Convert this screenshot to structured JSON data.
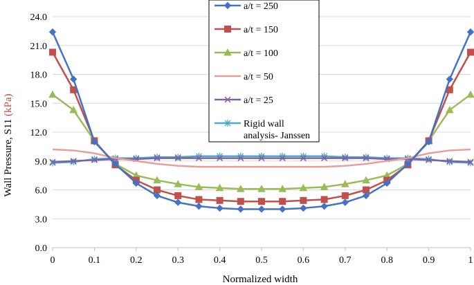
{
  "chart_data": {
    "type": "line",
    "title": "",
    "xlabel": "Normalized width",
    "ylabel_main": "Wall Pressure, S11 ",
    "ylabel_unit": "(kPa)",
    "xlim": [
      0,
      1
    ],
    "ylim": [
      0,
      24
    ],
    "x_ticks": [
      "0",
      "0.1",
      "0.2",
      "0.3",
      "0.4",
      "0.5",
      "0.6",
      "0.7",
      "0.8",
      "0.9",
      "1"
    ],
    "y_ticks": [
      "0.0",
      "3.0",
      "6.0",
      "9.0",
      "12.0",
      "15.0",
      "18.0",
      "21.0",
      "24.0"
    ],
    "grid": "horizontal",
    "legend_position": "top-center",
    "x": [
      0,
      0.05,
      0.1,
      0.15,
      0.2,
      0.25,
      0.3,
      0.35,
      0.4,
      0.45,
      0.5,
      0.55,
      0.6,
      0.65,
      0.7,
      0.75,
      0.8,
      0.85,
      0.9,
      0.95,
      1
    ],
    "series": [
      {
        "name": "a/t = 250",
        "color": "#4472C4",
        "marker": "diamond",
        "values": [
          22.4,
          17.5,
          11.0,
          8.7,
          6.7,
          5.4,
          4.7,
          4.3,
          4.1,
          4.0,
          4.0,
          4.0,
          4.1,
          4.3,
          4.7,
          5.4,
          6.7,
          8.7,
          11.0,
          17.5,
          22.4
        ]
      },
      {
        "name": "a/t = 150",
        "color": "#C0504D",
        "marker": "square",
        "values": [
          20.3,
          16.4,
          11.1,
          8.6,
          7.0,
          6.0,
          5.4,
          5.0,
          4.9,
          4.8,
          4.8,
          4.8,
          4.9,
          5.0,
          5.4,
          6.0,
          7.0,
          8.6,
          11.1,
          16.4,
          20.3
        ]
      },
      {
        "name": "a/t = 100",
        "color": "#9BBB59",
        "marker": "triangle",
        "values": [
          15.9,
          14.3,
          11.1,
          8.7,
          7.5,
          7.0,
          6.6,
          6.3,
          6.2,
          6.1,
          6.1,
          6.1,
          6.2,
          6.3,
          6.6,
          7.0,
          7.5,
          8.7,
          11.1,
          14.3,
          15.9
        ]
      },
      {
        "name": "a/t = 50",
        "color": "#E6A09C",
        "marker": "none",
        "values": [
          10.2,
          10.1,
          9.8,
          9.3,
          9.0,
          8.7,
          8.5,
          8.4,
          8.4,
          8.4,
          8.4,
          8.4,
          8.4,
          8.4,
          8.5,
          8.7,
          9.0,
          9.3,
          9.8,
          10.1,
          10.2
        ]
      },
      {
        "name": "a/t = 25",
        "color": "#7F60A8",
        "marker": "x",
        "values": [
          8.9,
          9.0,
          9.1,
          9.2,
          9.2,
          9.3,
          9.3,
          9.3,
          9.3,
          9.3,
          9.3,
          9.3,
          9.3,
          9.3,
          9.3,
          9.3,
          9.2,
          9.2,
          9.1,
          9.0,
          8.9
        ]
      },
      {
        "name": "Rigid wall analysis- Janssen",
        "name_lines": [
          "Rigid wall",
          "analysis- Janssen"
        ],
        "color": "#4BACC6",
        "marker": "star",
        "values": [
          8.8,
          8.9,
          9.2,
          9.3,
          9.3,
          9.4,
          9.4,
          9.5,
          9.5,
          9.5,
          9.5,
          9.5,
          9.5,
          9.5,
          9.4,
          9.4,
          9.3,
          9.3,
          9.2,
          8.9,
          8.8
        ]
      }
    ]
  }
}
